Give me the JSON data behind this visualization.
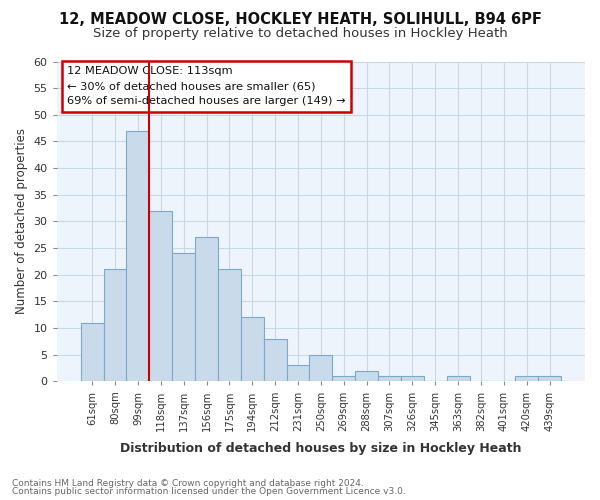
{
  "title": "12, MEADOW CLOSE, HOCKLEY HEATH, SOLIHULL, B94 6PF",
  "subtitle": "Size of property relative to detached houses in Hockley Heath",
  "xlabel": "Distribution of detached houses by size in Hockley Heath",
  "ylabel": "Number of detached properties",
  "footnote1": "Contains HM Land Registry data © Crown copyright and database right 2024.",
  "footnote2": "Contains public sector information licensed under the Open Government Licence v3.0.",
  "categories": [
    "61sqm",
    "80sqm",
    "99sqm",
    "118sqm",
    "137sqm",
    "156sqm",
    "175sqm",
    "194sqm",
    "212sqm",
    "231sqm",
    "250sqm",
    "269sqm",
    "288sqm",
    "307sqm",
    "326sqm",
    "345sqm",
    "363sqm",
    "382sqm",
    "401sqm",
    "420sqm",
    "439sqm"
  ],
  "values": [
    11,
    21,
    47,
    32,
    24,
    27,
    21,
    12,
    8,
    3,
    5,
    1,
    2,
    1,
    1,
    0,
    1,
    0,
    0,
    1,
    1
  ],
  "bar_color": "#c9daea",
  "bar_edge_color": "#7aaac8",
  "vline_x": 3,
  "vline_color": "#cc0000",
  "annotation_title": "12 MEADOW CLOSE: 113sqm",
  "annotation_line2": "← 30% of detached houses are smaller (65)",
  "annotation_line3": "69% of semi-detached houses are larger (149) →",
  "annotation_box_color": "white",
  "annotation_box_edge": "#cc0000",
  "ylim": [
    0,
    60
  ],
  "yticks": [
    0,
    5,
    10,
    15,
    20,
    25,
    30,
    35,
    40,
    45,
    50,
    55,
    60
  ],
  "grid_color": "#c8d8e8",
  "background_color": "#eef4fb",
  "title_fontsize": 10.5,
  "subtitle_fontsize": 9.5
}
